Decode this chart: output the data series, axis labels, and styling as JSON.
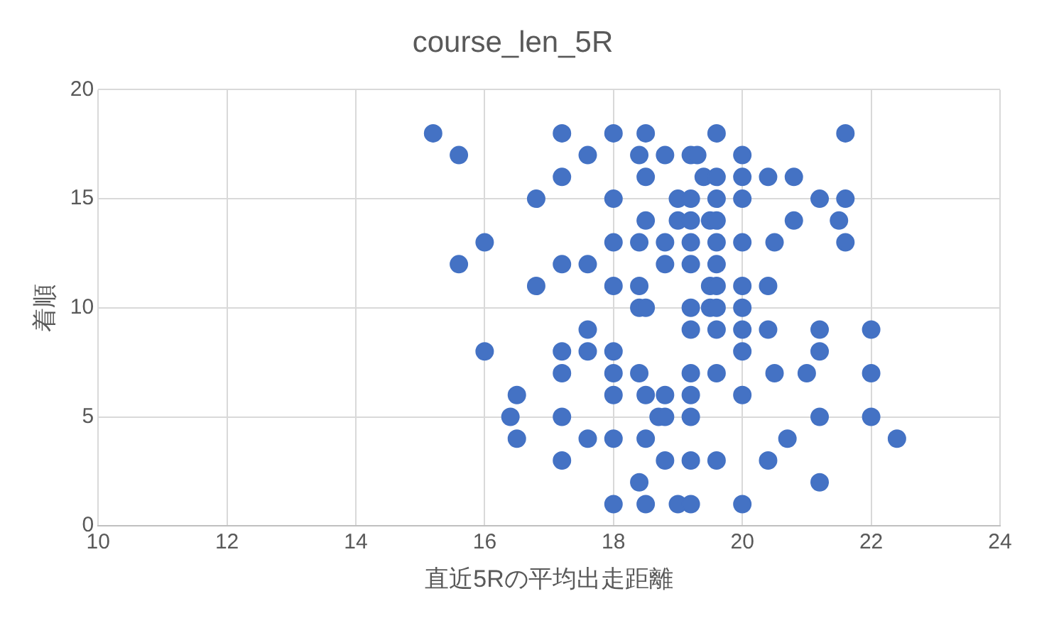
{
  "chart_data": {
    "type": "scatter",
    "title": "course_len_5R",
    "xlabel": "直近5Rの平均出走距離",
    "ylabel": "着順",
    "xlim": [
      10,
      24
    ],
    "xticks": [
      10,
      12,
      14,
      16,
      18,
      20,
      22,
      24
    ],
    "ylim": [
      0,
      20
    ],
    "yticks": [
      0,
      5,
      10,
      15,
      20
    ],
    "grid": true,
    "legend": false,
    "marker": "circle",
    "series": [
      {
        "color": "#4472c4",
        "x": [
          15.2,
          15.6,
          15.6,
          16.0,
          16.0,
          16.5,
          16.4,
          16.5,
          16.8,
          16.8,
          17.2,
          17.2,
          17.2,
          17.2,
          17.2,
          17.2,
          17.2,
          17.6,
          17.6,
          17.6,
          17.6,
          17.6,
          18.0,
          18.0,
          18.0,
          18.0,
          18.0,
          18.0,
          18.0,
          18.0,
          18.0,
          18.4,
          18.4,
          18.4,
          18.4,
          18.5,
          18.4,
          18.4,
          18.5,
          18.5,
          18.5,
          18.5,
          18.5,
          18.5,
          18.8,
          18.8,
          18.8,
          18.8,
          18.7,
          18.8,
          18.8,
          19.0,
          19.0,
          19.0,
          19.2,
          19.3,
          19.2,
          19.2,
          19.2,
          19.2,
          19.2,
          19.2,
          19.2,
          19.2,
          19.2,
          19.2,
          19.2,
          19.4,
          19.5,
          19.5,
          19.5,
          19.6,
          19.6,
          19.6,
          19.6,
          19.6,
          19.6,
          19.6,
          19.6,
          19.6,
          19.6,
          19.6,
          20.0,
          20.0,
          20.0,
          20.0,
          20.0,
          20.0,
          20.0,
          20.0,
          20.0,
          20.0,
          20.4,
          20.4,
          20.4,
          20.4,
          20.5,
          20.5,
          20.7,
          20.8,
          20.8,
          21.0,
          21.2,
          21.2,
          21.2,
          21.2,
          21.2,
          21.5,
          21.6,
          21.6,
          21.6,
          22.0,
          22.0,
          22.0,
          22.4
        ],
        "values": [
          18,
          17,
          12,
          13,
          8,
          6,
          5,
          4,
          15,
          11,
          18,
          16,
          12,
          8,
          7,
          5,
          3,
          17,
          12,
          9,
          8,
          4,
          18,
          15,
          13,
          11,
          8,
          7,
          6,
          4,
          1,
          17,
          13,
          11,
          10,
          10,
          7,
          2,
          18,
          16,
          14,
          6,
          4,
          1,
          17,
          13,
          12,
          6,
          5,
          5,
          3,
          15,
          14,
          1,
          17,
          17,
          15,
          14,
          13,
          12,
          10,
          9,
          7,
          6,
          5,
          3,
          1,
          16,
          14,
          11,
          10,
          18,
          16,
          15,
          14,
          13,
          12,
          11,
          10,
          9,
          7,
          3,
          17,
          16,
          15,
          13,
          11,
          10,
          9,
          8,
          6,
          1,
          16,
          11,
          9,
          3,
          13,
          7,
          4,
          16,
          14,
          7,
          15,
          9,
          8,
          5,
          2,
          14,
          18,
          15,
          13,
          9,
          7,
          5,
          4
        ]
      }
    ]
  }
}
